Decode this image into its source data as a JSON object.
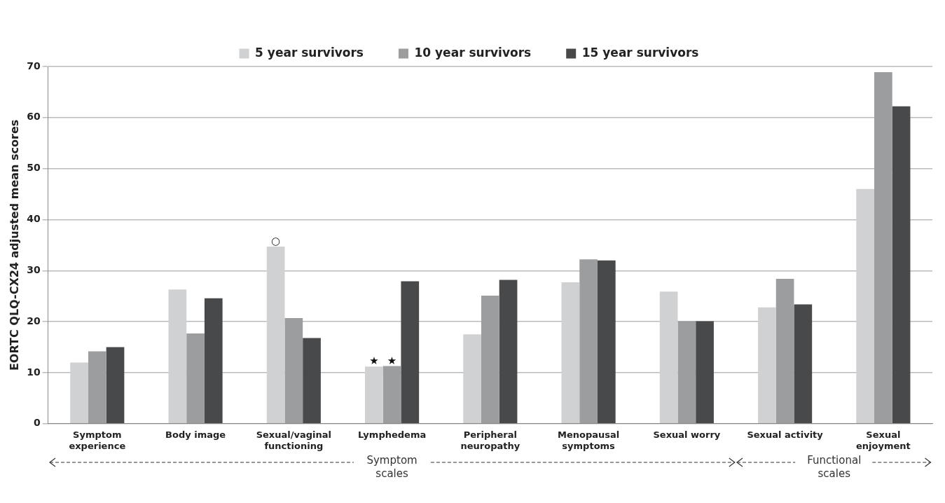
{
  "chart_data": {
    "type": "bar",
    "ylabel": "EORTC QLQ-CX24 adjusted mean scores",
    "categories": [
      "Symptom experience",
      "Body image",
      "Sexual/vaginal functioning",
      "Lymphedema",
      "Peripheral neuropathy",
      "Menopausal symptoms",
      "Sexual worry",
      "Sexual activity",
      "Sexual enjoyment"
    ],
    "series": [
      {
        "name": "5 year survivors",
        "color": "#d0d1d3",
        "values": [
          12.0,
          26.3,
          34.7,
          11.2,
          17.5,
          27.7,
          25.9,
          22.8,
          46.0
        ]
      },
      {
        "name": "10 year survivors",
        "color": "#9c9d9f",
        "values": [
          14.2,
          17.7,
          20.7,
          11.3,
          25.1,
          32.2,
          20.1,
          28.4,
          68.9
        ]
      },
      {
        "name": "15 year survivors",
        "color": "#48494b",
        "values": [
          15.0,
          24.6,
          16.8,
          27.9,
          28.2,
          32.0,
          20.1,
          23.4,
          62.2
        ]
      }
    ],
    "ylim": [
      0,
      70
    ],
    "yticks": [
      0,
      10,
      20,
      30,
      40,
      50,
      60,
      70
    ],
    "grid": "y",
    "legend": "top",
    "annotations": [
      "○",
      "★",
      "★",
      "Symptom scales",
      "Functional scales"
    ]
  }
}
